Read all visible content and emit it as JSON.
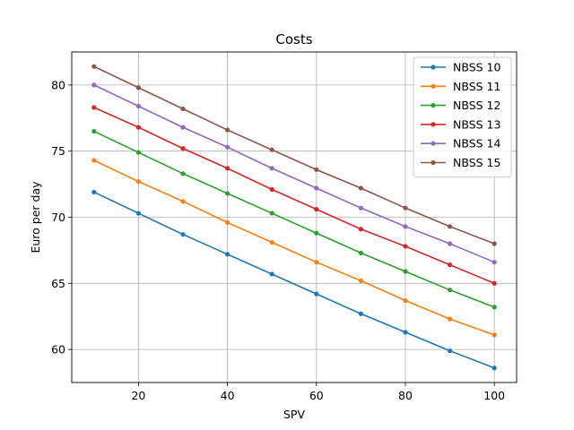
{
  "chart_data": {
    "type": "line",
    "title": "Costs",
    "xlabel": "SPV",
    "ylabel": "Euro per day",
    "x": [
      10,
      20,
      30,
      40,
      50,
      60,
      70,
      80,
      90,
      100
    ],
    "xlim": [
      5,
      105
    ],
    "ylim": [
      57.5,
      82.5
    ],
    "xticks": [
      20,
      40,
      60,
      80,
      100
    ],
    "yticks": [
      60,
      65,
      70,
      75,
      80
    ],
    "grid": true,
    "legend_position": "top-right",
    "series": [
      {
        "name": "NBSS 10",
        "color": "#1f77b4",
        "values": [
          71.9,
          70.3,
          68.7,
          67.2,
          65.7,
          64.2,
          62.7,
          61.3,
          59.9,
          58.6
        ]
      },
      {
        "name": "NBSS 11",
        "color": "#ff7f0e",
        "values": [
          74.3,
          72.7,
          71.2,
          69.6,
          68.1,
          66.6,
          65.2,
          63.7,
          62.3,
          61.1
        ]
      },
      {
        "name": "NBSS 12",
        "color": "#2ca02c",
        "values": [
          76.5,
          74.9,
          73.3,
          71.8,
          70.3,
          68.8,
          67.3,
          65.9,
          64.5,
          63.2
        ]
      },
      {
        "name": "NBSS 13",
        "color": "#d62728",
        "values": [
          78.3,
          76.8,
          75.2,
          73.7,
          72.1,
          70.6,
          69.1,
          67.8,
          66.4,
          65.0
        ]
      },
      {
        "name": "NBSS 14",
        "color": "#9467bd",
        "values": [
          80.0,
          78.4,
          76.8,
          75.3,
          73.7,
          72.2,
          70.7,
          69.3,
          68.0,
          66.6
        ]
      },
      {
        "name": "NBSS 15",
        "color": "#8c564b",
        "values": [
          81.4,
          79.8,
          78.2,
          76.6,
          75.1,
          73.6,
          72.2,
          70.7,
          69.3,
          68.0
        ]
      }
    ]
  }
}
